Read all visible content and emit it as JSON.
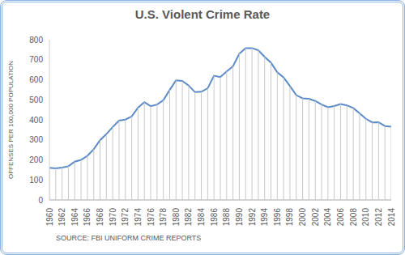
{
  "chart_data": {
    "type": "line",
    "title": "U.S. Violent Crime Rate",
    "y_label": "OFFENSES PER 100,000 POPULATION",
    "source": "SOURCE: FBI UNIFORM CRIME REPORTS",
    "x": [
      1960,
      1961,
      1962,
      1963,
      1964,
      1965,
      1966,
      1967,
      1968,
      1969,
      1970,
      1971,
      1972,
      1973,
      1974,
      1975,
      1976,
      1977,
      1978,
      1979,
      1980,
      1981,
      1982,
      1983,
      1984,
      1985,
      1986,
      1987,
      1988,
      1989,
      1990,
      1991,
      1992,
      1993,
      1994,
      1995,
      1996,
      1997,
      1998,
      1999,
      2000,
      2001,
      2002,
      2003,
      2004,
      2005,
      2006,
      2007,
      2008,
      2009,
      2010,
      2011,
      2012,
      2013,
      2014
    ],
    "values": [
      161,
      158,
      162,
      168,
      191,
      200,
      220,
      253,
      298,
      329,
      364,
      396,
      401,
      417,
      461,
      488,
      468,
      476,
      498,
      549,
      597,
      594,
      571,
      538,
      540,
      557,
      620,
      613,
      641,
      667,
      730,
      758,
      758,
      747,
      714,
      685,
      637,
      611,
      568,
      523,
      507,
      505,
      494,
      476,
      463,
      469,
      479,
      472,
      459,
      432,
      405,
      387,
      388,
      369,
      366
    ],
    "color": "#5b8ac8",
    "xlim": [
      1960,
      2014
    ],
    "xticks": [
      1960,
      1962,
      1964,
      1966,
      1968,
      1970,
      1972,
      1974,
      1976,
      1978,
      1980,
      1982,
      1984,
      1986,
      1988,
      1990,
      1992,
      1994,
      1996,
      1998,
      2000,
      2002,
      2004,
      2006,
      2008,
      2010,
      2012,
      2014
    ],
    "ylim": [
      0,
      800
    ],
    "yticks": [
      0,
      100,
      200,
      300,
      400,
      500,
      600,
      700,
      800
    ],
    "grid": false
  }
}
